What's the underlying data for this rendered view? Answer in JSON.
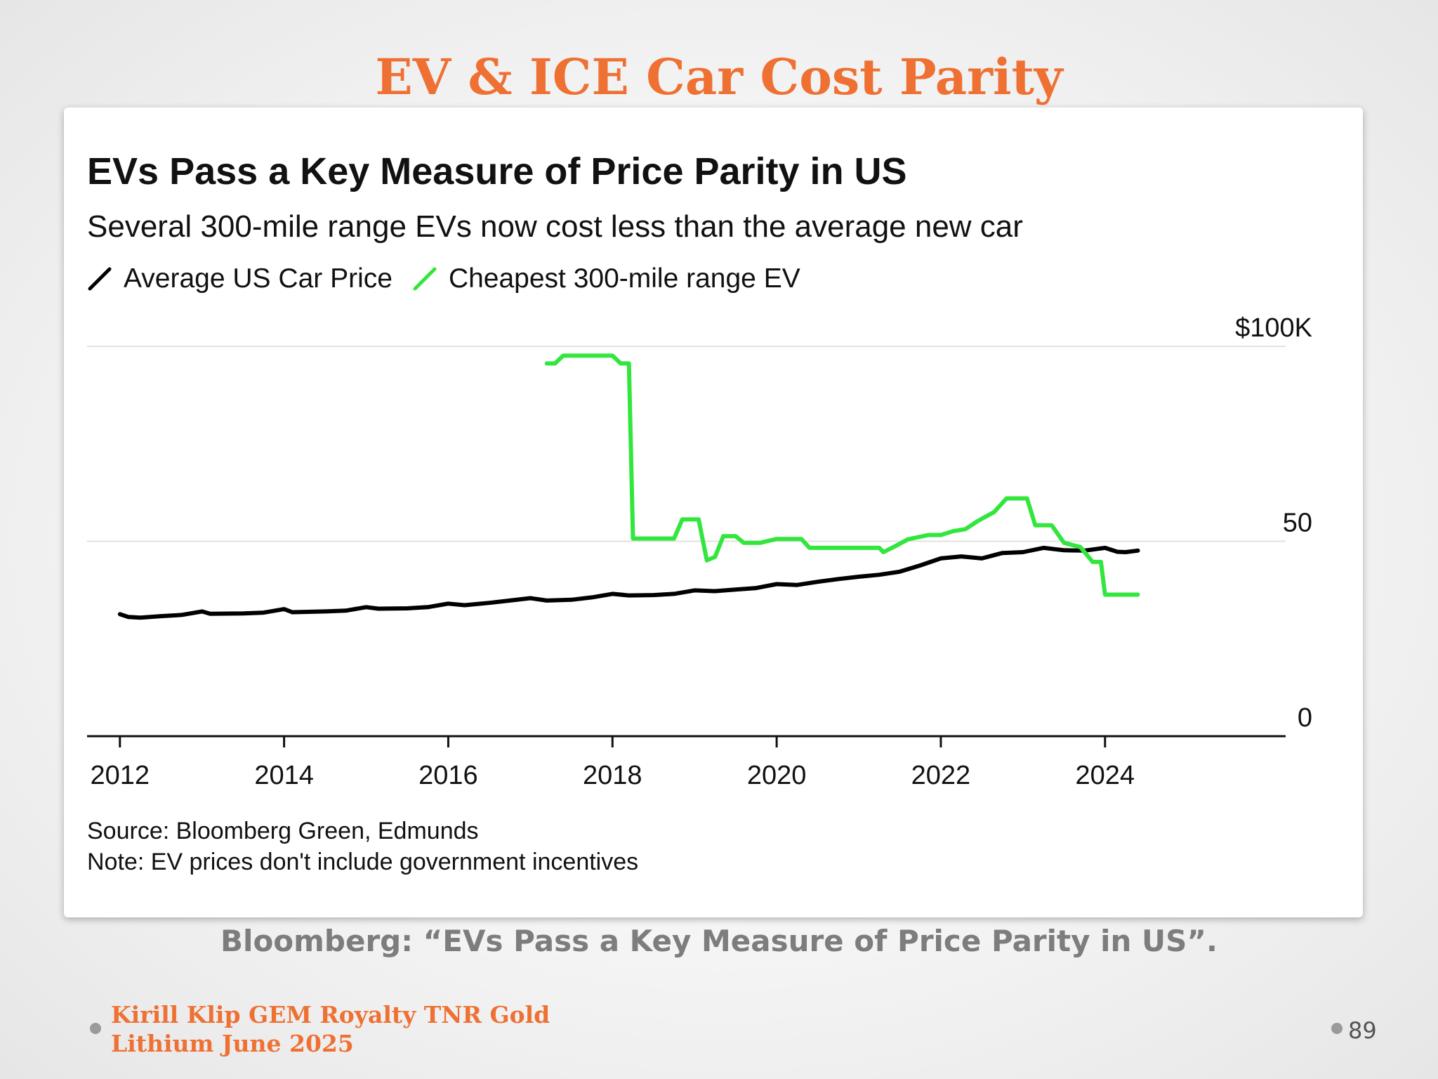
{
  "slide": {
    "title": "EV & ICE Car Cost Parity",
    "caption": "Bloomberg: “EVs Pass a Key Measure of Price Parity in US”.",
    "footer_line1": "Kirill Klip GEM Royalty TNR Gold",
    "footer_line2": "Lithium June 2025",
    "page_number": "89"
  },
  "chart_data": {
    "type": "line",
    "title": "EVs Pass a Key Measure of Price Parity in US",
    "subtitle": "Several 300-mile range EVs now cost less than the average new car",
    "x_ticks": [
      "2012",
      "2014",
      "2016",
      "2018",
      "2020",
      "2022",
      "2024"
    ],
    "y_ticks": [
      "0",
      "50",
      "$100K"
    ],
    "xlim": [
      2011.6,
      2026.2
    ],
    "ylim": [
      0,
      100
    ],
    "grid": true,
    "legend_position": "top-left",
    "source": "Source: Bloomberg Green, Edmunds",
    "note": "Note: EV prices don't include government incentives",
    "series": [
      {
        "name": "Average US Car Price",
        "color": "#000000",
        "points": [
          [
            2012.0,
            31.3
          ],
          [
            2012.1,
            30.6
          ],
          [
            2012.25,
            30.4
          ],
          [
            2012.5,
            30.8
          ],
          [
            2012.75,
            31.1
          ],
          [
            2013.0,
            32.0
          ],
          [
            2013.1,
            31.4
          ],
          [
            2013.5,
            31.5
          ],
          [
            2013.75,
            31.7
          ],
          [
            2014.0,
            32.6
          ],
          [
            2014.1,
            31.8
          ],
          [
            2014.5,
            32.0
          ],
          [
            2014.75,
            32.2
          ],
          [
            2015.0,
            33.1
          ],
          [
            2015.15,
            32.7
          ],
          [
            2015.5,
            32.8
          ],
          [
            2015.75,
            33.1
          ],
          [
            2016.0,
            34.0
          ],
          [
            2016.2,
            33.6
          ],
          [
            2016.5,
            34.2
          ],
          [
            2016.75,
            34.8
          ],
          [
            2017.0,
            35.4
          ],
          [
            2017.2,
            34.8
          ],
          [
            2017.5,
            35.0
          ],
          [
            2017.75,
            35.6
          ],
          [
            2018.0,
            36.5
          ],
          [
            2018.2,
            36.1
          ],
          [
            2018.5,
            36.2
          ],
          [
            2018.75,
            36.5
          ],
          [
            2019.0,
            37.4
          ],
          [
            2019.25,
            37.2
          ],
          [
            2019.5,
            37.6
          ],
          [
            2019.75,
            38.0
          ],
          [
            2020.0,
            39.0
          ],
          [
            2020.25,
            38.8
          ],
          [
            2020.5,
            39.6
          ],
          [
            2020.75,
            40.3
          ],
          [
            2021.0,
            40.9
          ],
          [
            2021.25,
            41.4
          ],
          [
            2021.5,
            42.2
          ],
          [
            2021.75,
            43.8
          ],
          [
            2022.0,
            45.6
          ],
          [
            2022.25,
            46.1
          ],
          [
            2022.5,
            45.6
          ],
          [
            2022.75,
            47.0
          ],
          [
            2023.0,
            47.2
          ],
          [
            2023.25,
            48.3
          ],
          [
            2023.5,
            47.7
          ],
          [
            2023.75,
            47.6
          ],
          [
            2024.0,
            48.3
          ],
          [
            2024.15,
            47.3
          ],
          [
            2024.25,
            47.2
          ],
          [
            2024.4,
            47.6
          ]
        ]
      },
      {
        "name": "Cheapest 300-mile range EV",
        "color": "#33E63D",
        "points": [
          [
            2017.2,
            95.6
          ],
          [
            2017.3,
            95.6
          ],
          [
            2017.4,
            97.6
          ],
          [
            2017.6,
            97.6
          ],
          [
            2017.8,
            97.6
          ],
          [
            2018.0,
            97.6
          ],
          [
            2018.1,
            95.6
          ],
          [
            2018.2,
            95.6
          ],
          [
            2018.25,
            50.7
          ],
          [
            2018.5,
            50.7
          ],
          [
            2018.75,
            50.7
          ],
          [
            2018.85,
            55.6
          ],
          [
            2019.05,
            55.6
          ],
          [
            2019.15,
            45.1
          ],
          [
            2019.25,
            46.0
          ],
          [
            2019.35,
            51.3
          ],
          [
            2019.5,
            51.3
          ],
          [
            2019.6,
            49.6
          ],
          [
            2019.8,
            49.6
          ],
          [
            2020.0,
            50.6
          ],
          [
            2020.3,
            50.6
          ],
          [
            2020.4,
            48.3
          ],
          [
            2020.7,
            48.3
          ],
          [
            2021.0,
            48.3
          ],
          [
            2021.25,
            48.3
          ],
          [
            2021.3,
            47.2
          ],
          [
            2021.45,
            48.8
          ],
          [
            2021.6,
            50.5
          ],
          [
            2021.85,
            51.6
          ],
          [
            2022.0,
            51.6
          ],
          [
            2022.15,
            52.6
          ],
          [
            2022.3,
            53.1
          ],
          [
            2022.45,
            55.2
          ],
          [
            2022.65,
            57.5
          ],
          [
            2022.8,
            61.0
          ],
          [
            2022.95,
            61.0
          ],
          [
            2023.05,
            61.0
          ],
          [
            2023.15,
            54.1
          ],
          [
            2023.35,
            54.1
          ],
          [
            2023.5,
            49.6
          ],
          [
            2023.7,
            48.5
          ],
          [
            2023.85,
            44.7
          ],
          [
            2023.95,
            44.7
          ],
          [
            2024.0,
            36.3
          ],
          [
            2024.4,
            36.3
          ]
        ]
      }
    ]
  }
}
